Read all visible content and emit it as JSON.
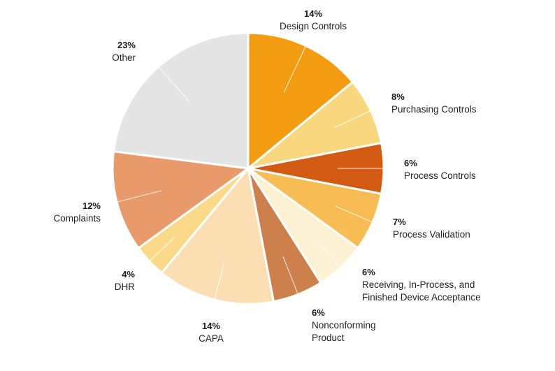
{
  "chart_data": {
    "type": "pie",
    "title": "",
    "start_angle_deg": 0,
    "direction": "clockwise",
    "slices": [
      {
        "label": [
          "Design Controls"
        ],
        "percent_label": "14%",
        "value": 14,
        "color": "#F39C12",
        "label_anchor": "middle"
      },
      {
        "label": [
          "Purchasing Controls"
        ],
        "percent_label": "8%",
        "value": 8,
        "color": "#F9D77E",
        "label_anchor": "start"
      },
      {
        "label": [
          "Process Controls"
        ],
        "percent_label": "6%",
        "value": 6,
        "color": "#D35A12",
        "label_anchor": "start"
      },
      {
        "label": [
          "Process Validation"
        ],
        "percent_label": "7%",
        "value": 7,
        "color": "#F8BC55",
        "label_anchor": "start"
      },
      {
        "label": [
          "Receiving, In-Process, and",
          "Finished Device Acceptance"
        ],
        "percent_label": "6%",
        "value": 6,
        "color": "#FDF1D3",
        "label_anchor": "start"
      },
      {
        "label": [
          "Nonconforming",
          "Product"
        ],
        "percent_label": "6%",
        "value": 6,
        "color": "#CD7F4C",
        "label_anchor": "start"
      },
      {
        "label": [
          "CAPA"
        ],
        "percent_label": "14%",
        "value": 14,
        "color": "#FBDFB3",
        "label_anchor": "middle"
      },
      {
        "label": [
          "DHR"
        ],
        "percent_label": "4%",
        "value": 4,
        "color": "#FADA88",
        "label_anchor": "end"
      },
      {
        "label": [
          "Complaints"
        ],
        "percent_label": "12%",
        "value": 12,
        "color": "#E99A6A",
        "label_anchor": "end"
      },
      {
        "label": [
          "Other"
        ],
        "percent_label": "23%",
        "value": 23,
        "color": "#E4E4E4",
        "label_anchor": "end"
      }
    ],
    "legend": "none"
  }
}
